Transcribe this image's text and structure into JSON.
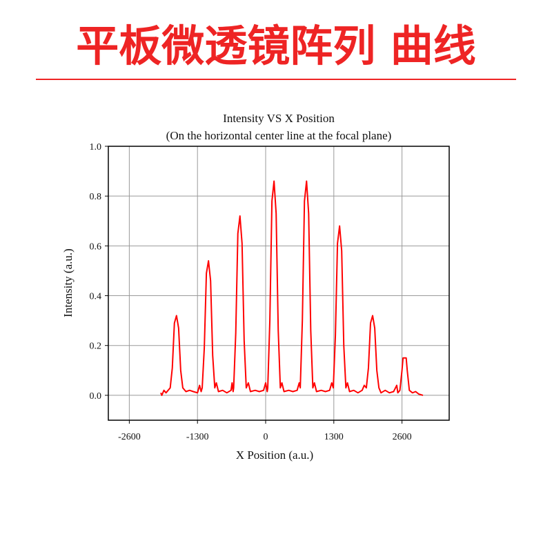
{
  "header": {
    "title": "平板微透镜阵列 曲线"
  },
  "chart_data": {
    "type": "line",
    "title": "Intensity VS X Position",
    "subtitle": "(On the horizontal center line at the focal plane)",
    "xlabel": "X Position (a.u.)",
    "ylabel": "Intensity (a.u.)",
    "xlim": [
      -3000,
      3500
    ],
    "xticks": [
      -2600,
      -1300,
      0,
      1300,
      2600
    ],
    "ylim": [
      -0.1,
      1.0
    ],
    "yticks": [
      {
        "value": 0,
        "label": "0.0"
      },
      0.2,
      0.4,
      0.6,
      0.8,
      {
        "value": 1,
        "label": "1.0"
      }
    ],
    "grid": true,
    "x": [
      -2000,
      -1980,
      -1940,
      -1900,
      -1860,
      -1820,
      -1780,
      -1740,
      -1700,
      -1660,
      -1620,
      -1580,
      -1520,
      -1450,
      -1380,
      -1300,
      -1260,
      -1230,
      -1210,
      -1170,
      -1130,
      -1090,
      -1050,
      -1010,
      -970,
      -940,
      -900,
      -820,
      -740,
      -660,
      -640,
      -620,
      -610,
      -570,
      -530,
      -490,
      -450,
      -410,
      -370,
      -330,
      -290,
      -200,
      -120,
      -40,
      0,
      30,
      40,
      80,
      120,
      160,
      200,
      240,
      280,
      310,
      350,
      440,
      520,
      600,
      640,
      660,
      700,
      740,
      780,
      820,
      860,
      900,
      930,
      970,
      1060,
      1140,
      1220,
      1260,
      1290,
      1330,
      1370,
      1410,
      1450,
      1490,
      1530,
      1560,
      1600,
      1680,
      1760,
      1840,
      1880,
      1920,
      1960,
      2000,
      2040,
      2080,
      2120,
      2160,
      2200,
      2280,
      2360,
      2440,
      2500,
      2520,
      2560,
      2600,
      2620,
      2680,
      2700,
      2740,
      2800,
      2860,
      2920,
      3000
    ],
    "series": [
      {
        "name": "Intensity",
        "color": "#ff0000",
        "values": [
          0.01,
          0.0,
          0.02,
          0.01,
          0.02,
          0.03,
          0.11,
          0.29,
          0.32,
          0.27,
          0.1,
          0.03,
          0.015,
          0.02,
          0.015,
          0.01,
          0.04,
          0.015,
          0.03,
          0.19,
          0.49,
          0.54,
          0.46,
          0.16,
          0.03,
          0.05,
          0.015,
          0.02,
          0.01,
          0.02,
          0.05,
          0.015,
          0.03,
          0.25,
          0.65,
          0.72,
          0.61,
          0.22,
          0.03,
          0.05,
          0.015,
          0.02,
          0.015,
          0.02,
          0.05,
          0.015,
          0.03,
          0.3,
          0.78,
          0.86,
          0.73,
          0.26,
          0.03,
          0.05,
          0.015,
          0.02,
          0.015,
          0.02,
          0.05,
          0.03,
          0.3,
          0.78,
          0.86,
          0.73,
          0.26,
          0.03,
          0.05,
          0.015,
          0.02,
          0.015,
          0.02,
          0.05,
          0.03,
          0.24,
          0.61,
          0.68,
          0.58,
          0.2,
          0.03,
          0.05,
          0.015,
          0.02,
          0.01,
          0.02,
          0.04,
          0.03,
          0.11,
          0.29,
          0.32,
          0.27,
          0.1,
          0.03,
          0.01,
          0.02,
          0.01,
          0.015,
          0.04,
          0.01,
          0.02,
          0.1,
          0.15,
          0.15,
          0.1,
          0.02,
          0.01,
          0.015,
          0.005,
          0.0
        ]
      }
    ]
  }
}
